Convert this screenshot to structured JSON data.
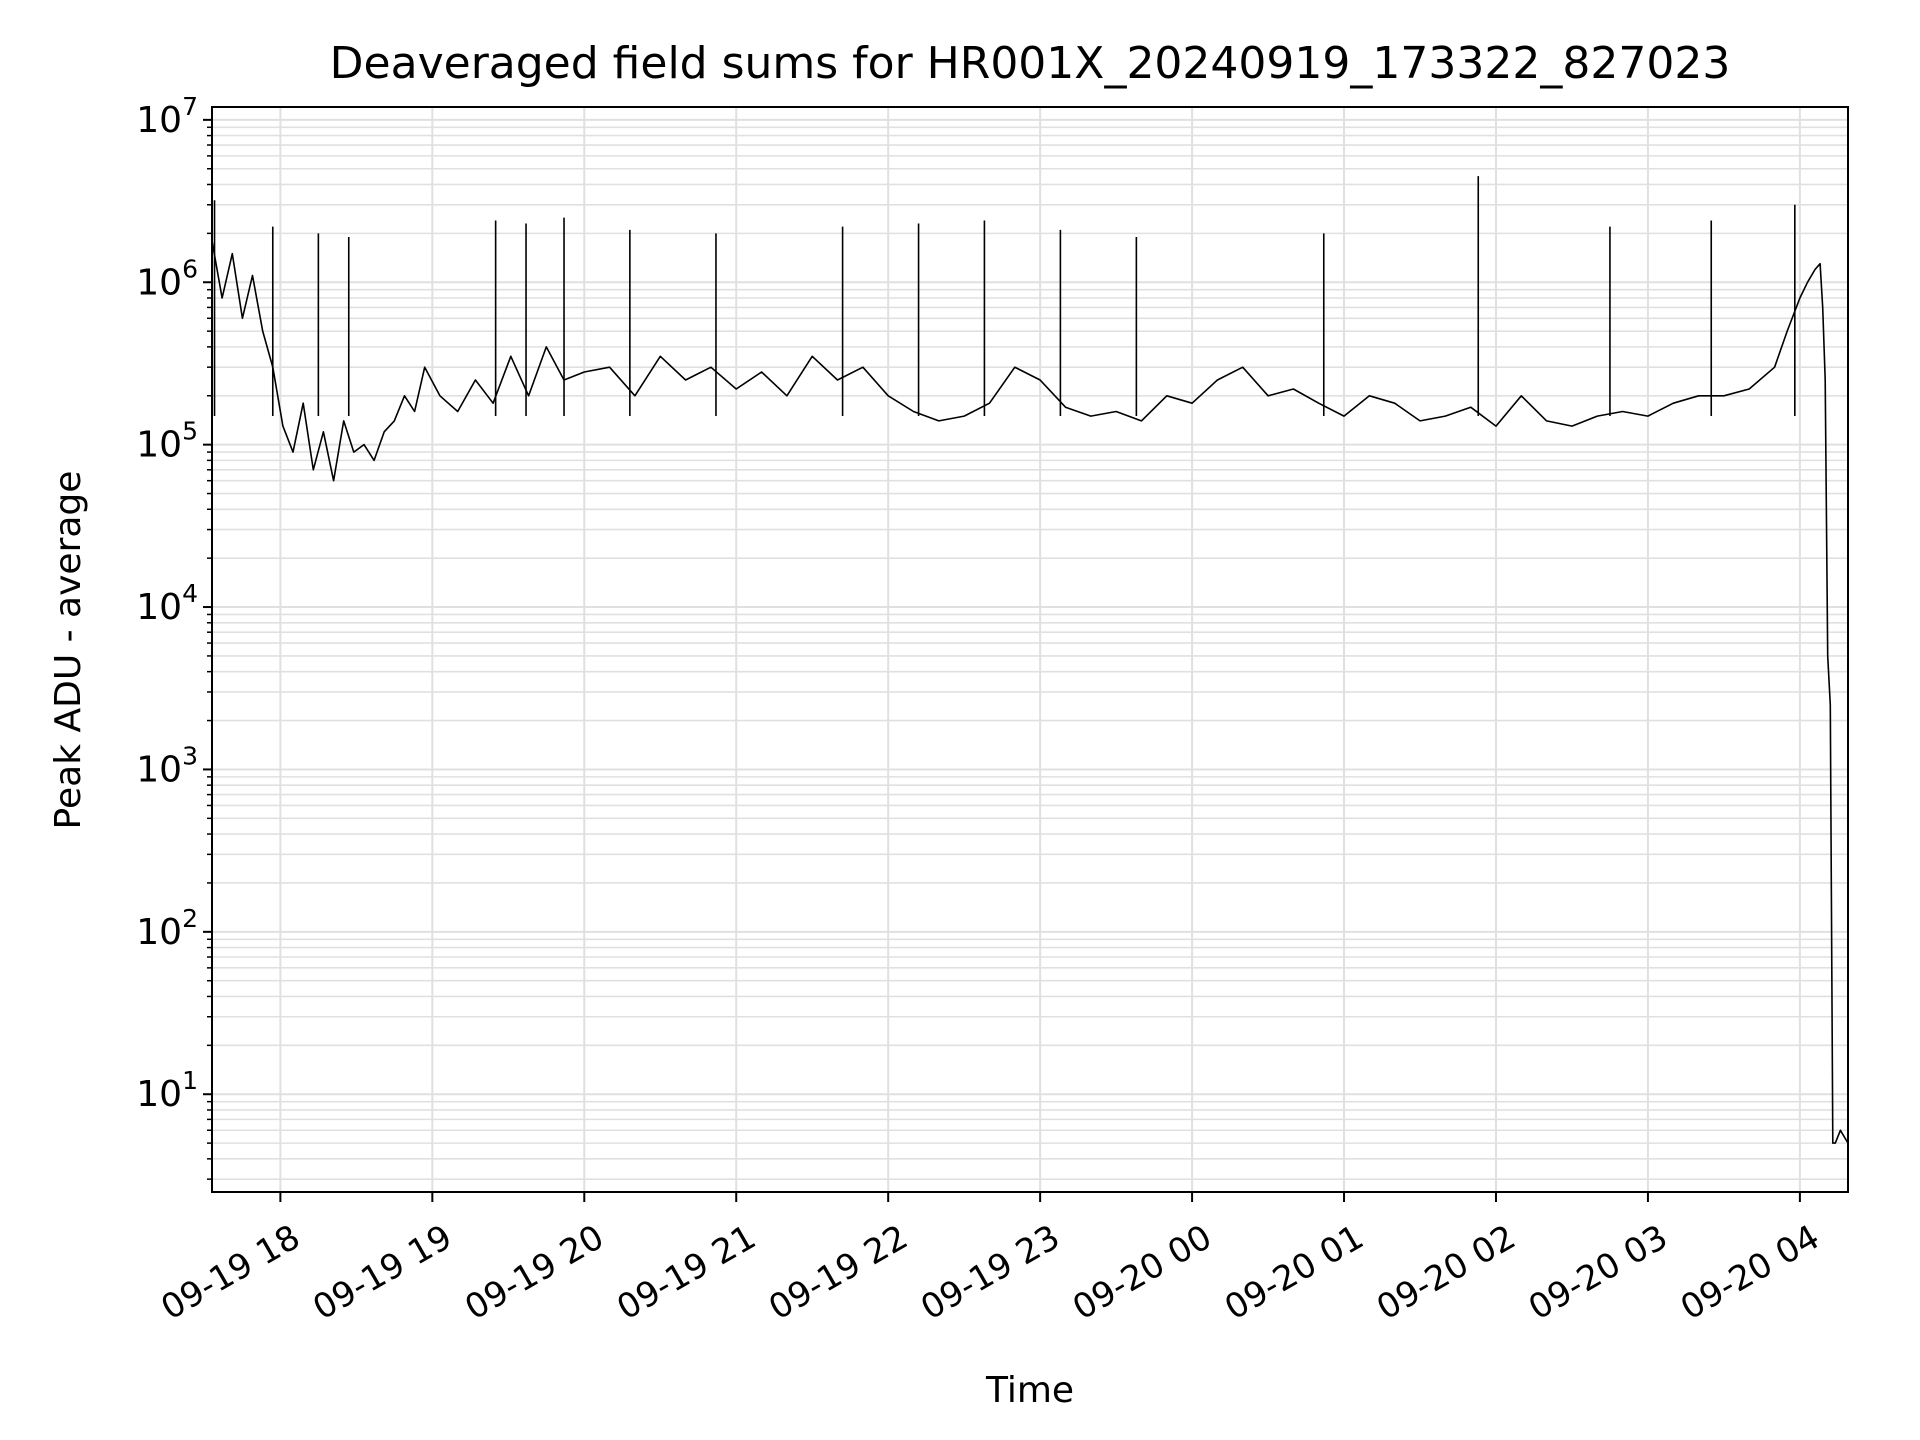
{
  "chart_data": {
    "type": "line",
    "title": "Deaveraged field sums for HR001X_20240919_173322_827023",
    "xlabel": "Time",
    "ylabel": "Peak ADU - average",
    "yscale": "log",
    "ylim": [
      2.5,
      12000000
    ],
    "xlim": [
      "2024-09-19 17:33",
      "2024-09-20 04:19"
    ],
    "grid": true,
    "line_color": "#000000",
    "grid_color": "#e0e0e0",
    "x_tick_labels": [
      "09-19 18",
      "09-19 19",
      "09-19 20",
      "09-19 21",
      "09-19 22",
      "09-19 23",
      "09-20 00",
      "09-20 01",
      "09-20 02",
      "09-20 03",
      "09-20 04"
    ],
    "y_tick_labels": [
      {
        "base": "10",
        "exp": "1"
      },
      {
        "base": "10",
        "exp": "2"
      },
      {
        "base": "10",
        "exp": "3"
      },
      {
        "base": "10",
        "exp": "4"
      },
      {
        "base": "10",
        "exp": "5"
      },
      {
        "base": "10",
        "exp": "6"
      },
      {
        "base": "10",
        "exp": "7"
      }
    ],
    "series": [
      {
        "x": [
          "2024-09-19 17:33",
          "2024-09-19 17:37",
          "2024-09-19 17:41",
          "2024-09-19 17:45",
          "2024-09-19 17:49",
          "2024-09-19 17:53",
          "2024-09-19 17:57",
          "2024-09-19 18:01",
          "2024-09-19 18:05",
          "2024-09-19 18:09",
          "2024-09-19 18:13",
          "2024-09-19 18:17",
          "2024-09-19 18:21",
          "2024-09-19 18:25",
          "2024-09-19 18:29",
          "2024-09-19 18:33",
          "2024-09-19 18:37",
          "2024-09-19 18:41",
          "2024-09-19 18:45",
          "2024-09-19 18:49",
          "2024-09-19 18:53",
          "2024-09-19 18:57",
          "2024-09-19 19:03",
          "2024-09-19 19:10",
          "2024-09-19 19:17",
          "2024-09-19 19:24",
          "2024-09-19 19:31",
          "2024-09-19 19:38",
          "2024-09-19 19:45",
          "2024-09-19 19:52",
          "2024-09-19 20:00",
          "2024-09-19 20:10",
          "2024-09-19 20:20",
          "2024-09-19 20:30",
          "2024-09-19 20:40",
          "2024-09-19 20:50",
          "2024-09-19 21:00",
          "2024-09-19 21:10",
          "2024-09-19 21:20",
          "2024-09-19 21:30",
          "2024-09-19 21:40",
          "2024-09-19 21:50",
          "2024-09-19 22:00",
          "2024-09-19 22:10",
          "2024-09-19 22:20",
          "2024-09-19 22:30",
          "2024-09-19 22:40",
          "2024-09-19 22:50",
          "2024-09-19 23:00",
          "2024-09-19 23:10",
          "2024-09-19 23:20",
          "2024-09-19 23:30",
          "2024-09-19 23:40",
          "2024-09-19 23:50",
          "2024-09-20 00:00",
          "2024-09-20 00:10",
          "2024-09-20 00:20",
          "2024-09-20 00:30",
          "2024-09-20 00:40",
          "2024-09-20 00:50",
          "2024-09-20 01:00",
          "2024-09-20 01:10",
          "2024-09-20 01:20",
          "2024-09-20 01:30",
          "2024-09-20 01:40",
          "2024-09-20 01:50",
          "2024-09-20 02:00",
          "2024-09-20 02:10",
          "2024-09-20 02:20",
          "2024-09-20 02:30",
          "2024-09-20 02:40",
          "2024-09-20 02:50",
          "2024-09-20 03:00",
          "2024-09-20 03:10",
          "2024-09-20 03:20",
          "2024-09-20 03:30",
          "2024-09-20 03:40",
          "2024-09-20 03:50",
          "2024-09-20 03:55",
          "2024-09-20 04:00",
          "2024-09-20 04:03",
          "2024-09-20 04:06",
          "2024-09-20 04:08",
          "2024-09-20 04:09",
          "2024-09-20 04:10",
          "2024-09-20 04:11",
          "2024-09-20 04:12",
          "2024-09-20 04:13",
          "2024-09-20 04:14",
          "2024-09-20 04:16",
          "2024-09-20 04:19"
        ],
        "y": [
          1800000,
          800000,
          1500000,
          600000,
          1100000,
          500000,
          300000,
          130000,
          90000,
          180000,
          70000,
          120000,
          60000,
          140000,
          90000,
          100000,
          80000,
          120000,
          140000,
          200000,
          160000,
          300000,
          200000,
          160000,
          250000,
          180000,
          350000,
          200000,
          400000,
          250000,
          280000,
          300000,
          200000,
          350000,
          250000,
          300000,
          220000,
          280000,
          200000,
          350000,
          250000,
          300000,
          200000,
          160000,
          140000,
          150000,
          180000,
          300000,
          250000,
          170000,
          150000,
          160000,
          140000,
          200000,
          180000,
          250000,
          300000,
          200000,
          220000,
          180000,
          150000,
          200000,
          180000,
          140000,
          150000,
          170000,
          130000,
          200000,
          140000,
          130000,
          150000,
          160000,
          150000,
          180000,
          200000,
          200000,
          220000,
          300000,
          500000,
          800000,
          1000000,
          1200000,
          1300000,
          700000,
          250000,
          5000,
          2500,
          5,
          5,
          6,
          5
        ],
        "spikes": [
          {
            "x": "2024-09-19 17:34",
            "y": 3200000
          },
          {
            "x": "2024-09-19 17:57",
            "y": 2200000
          },
          {
            "x": "2024-09-19 18:15",
            "y": 2000000
          },
          {
            "x": "2024-09-19 18:27",
            "y": 1900000
          },
          {
            "x": "2024-09-19 19:25",
            "y": 2400000
          },
          {
            "x": "2024-09-19 19:37",
            "y": 2300000
          },
          {
            "x": "2024-09-19 19:52",
            "y": 2500000
          },
          {
            "x": "2024-09-19 20:18",
            "y": 2100000
          },
          {
            "x": "2024-09-19 20:52",
            "y": 2000000
          },
          {
            "x": "2024-09-19 21:42",
            "y": 2200000
          },
          {
            "x": "2024-09-19 22:12",
            "y": 2300000
          },
          {
            "x": "2024-09-19 22:38",
            "y": 2400000
          },
          {
            "x": "2024-09-19 23:08",
            "y": 2100000
          },
          {
            "x": "2024-09-19 23:38",
            "y": 1900000
          },
          {
            "x": "2024-09-20 00:52",
            "y": 2000000
          },
          {
            "x": "2024-09-20 01:53",
            "y": 4500000
          },
          {
            "x": "2024-09-20 02:45",
            "y": 2200000
          },
          {
            "x": "2024-09-20 03:25",
            "y": 2400000
          },
          {
            "x": "2024-09-20 03:58",
            "y": 3000000
          }
        ]
      }
    ]
  }
}
